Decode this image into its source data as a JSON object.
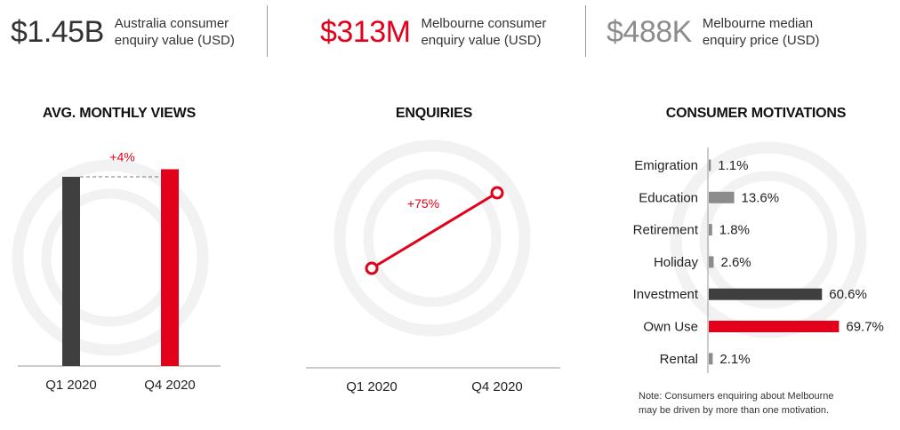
{
  "kpis": [
    {
      "value": "$1.45B",
      "label_line1": "Australia consumer",
      "label_line2": "enquiry value (USD)",
      "color": "#333333"
    },
    {
      "value": "$313M",
      "label_line1": "Melbourne consumer",
      "label_line2": "enquiry value (USD)",
      "color": "#e2001a"
    },
    {
      "value": "$488K",
      "label_line1": "Melbourne median",
      "label_line2": "enquiry price (USD)",
      "color": "#8c8c8c"
    }
  ],
  "colors": {
    "accent": "#e2001a",
    "dark": "#3f3f3f",
    "grey": "#8c8c8c",
    "light": "#d9d9d9"
  },
  "note_line1": "Note: Consumers enquiring about Melbourne",
  "note_line2": "may be driven by more than one motivation.",
  "chart_data": [
    {
      "type": "bar",
      "title": "AVG. MONTHLY VIEWS",
      "categories": [
        "Q1 2020",
        "Q4 2020"
      ],
      "values": [
        100,
        104
      ],
      "change_label": "+4%"
    },
    {
      "type": "line",
      "title": "ENQUIRIES",
      "categories": [
        "Q1 2020",
        "Q4 2020"
      ],
      "values": [
        100,
        175
      ],
      "change_label": "+75%"
    },
    {
      "type": "bar",
      "orientation": "horizontal",
      "title": "CONSUMER MOTIVATIONS",
      "categories": [
        "Emigration",
        "Education",
        "Retirement",
        "Holiday",
        "Investment",
        "Own Use",
        "Rental"
      ],
      "values": [
        1.1,
        13.6,
        1.8,
        2.6,
        60.6,
        69.7,
        2.1
      ],
      "value_labels": [
        "1.1%",
        "13.6%",
        "1.8%",
        "2.6%",
        "60.6%",
        "69.7%",
        "2.1%"
      ],
      "bar_colors": [
        "#8c8c8c",
        "#8c8c8c",
        "#8c8c8c",
        "#8c8c8c",
        "#3f3f3f",
        "#e2001a",
        "#8c8c8c"
      ]
    }
  ]
}
